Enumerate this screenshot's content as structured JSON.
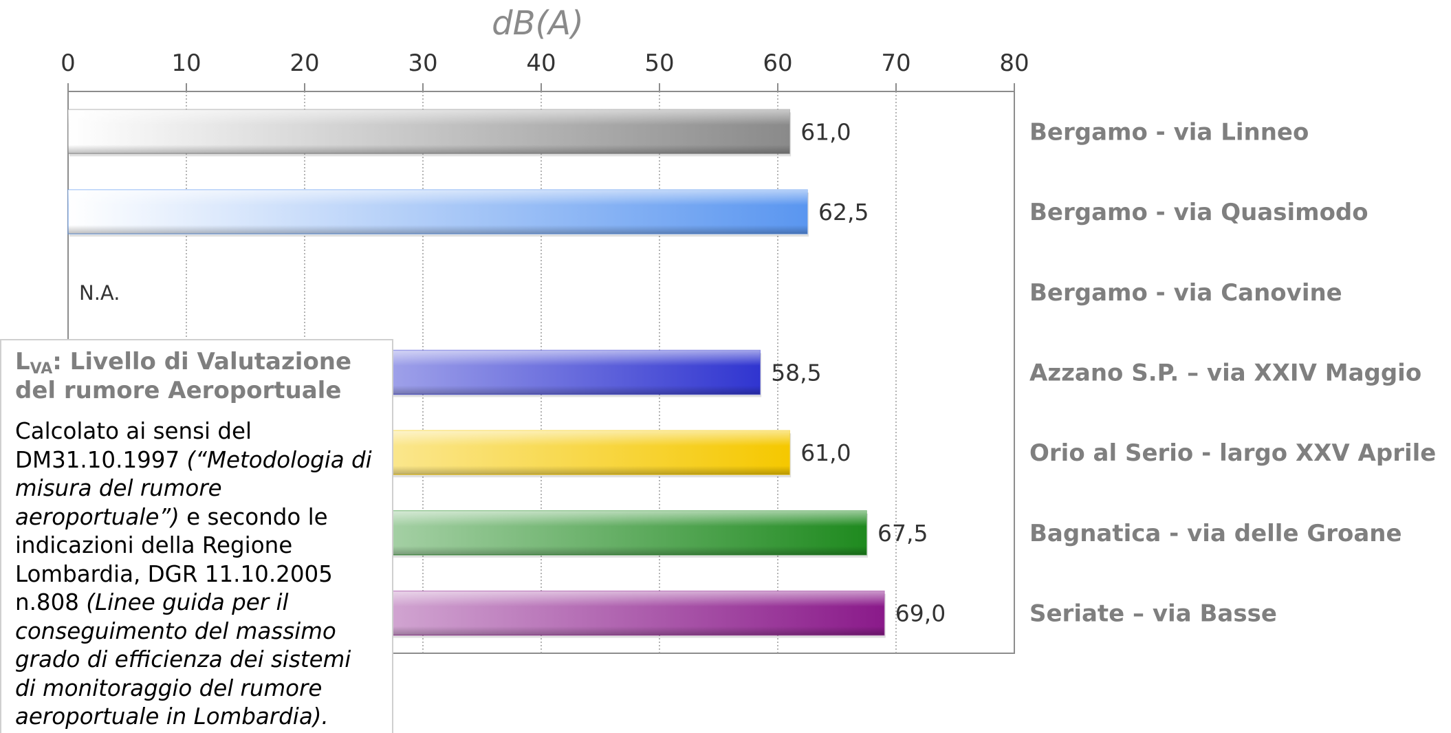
{
  "chart_data": {
    "type": "bar",
    "orientation": "horizontal",
    "unit_label": "dB(A)",
    "xlim": [
      0,
      80
    ],
    "x_ticks": [
      "0",
      "10",
      "20",
      "30",
      "40",
      "50",
      "60",
      "70",
      "80"
    ],
    "grid": "vertical",
    "categories": [
      "Bergamo - via Linneo",
      "Bergamo - via Quasimodo",
      "Bergamo - via Canovine",
      "Azzano S.P. – via XXIV Maggio",
      "Orio al Serio - largo XXV Aprile",
      "Bagnatica - via delle Groane",
      "Seriate – via Basse"
    ],
    "values": [
      61.0,
      62.5,
      null,
      58.5,
      61.0,
      67.5,
      69.0
    ],
    "value_labels": [
      "61,0",
      "62,5",
      "N.A.",
      "58,5",
      "61,0",
      "67,5",
      "69,0"
    ],
    "bar_colors": [
      "#8a8a8a",
      "#5a96f0",
      null,
      "#3035d0",
      "#f5c800",
      "#1f8a1f",
      "#8a1a8a"
    ]
  },
  "note": {
    "title_main": "L",
    "title_sub": "VA",
    "title_rest": ": Livello di Valutazione del rumore Aeroportuale",
    "body": [
      {
        "text": "Calcolato ai sensi del DM31.10.1997 ",
        "italic": false
      },
      {
        "text": "(“Metodologia di misura del rumore aeroportuale”)",
        "italic": true
      },
      {
        "text": " e secondo le indicazioni della Regione Lombardia, DGR 11.10.2005 n.808 ",
        "italic": false
      },
      {
        "text": "(Linee guida per il conseguimento del massimo grado di efficienza dei sistemi di monitoraggio del rumore aeroportuale in Lombardia).",
        "italic": true
      }
    ]
  }
}
